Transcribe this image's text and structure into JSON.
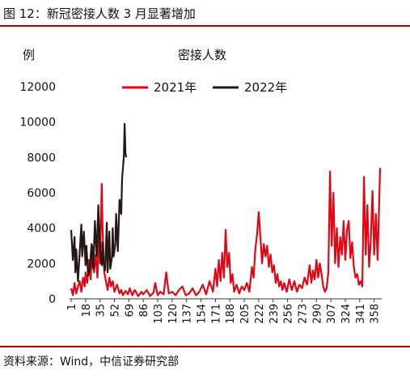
{
  "figure": {
    "title": "图 12：新冠密接人数 3 月显著增加",
    "source": "资料来源：Wind，中信证券研究部"
  },
  "colors": {
    "accent": "#c00000",
    "series_2021": "#e30613",
    "series_2022": "#231815"
  },
  "chart_data": {
    "type": "line",
    "title": "密接人数",
    "ylabel": "例",
    "xlabel": "",
    "ylim": [
      0,
      12000
    ],
    "yticks": [
      "0",
      "2000",
      "4000",
      "6000",
      "8000",
      "10000",
      "12000"
    ],
    "yticks_values": [
      0,
      2000,
      4000,
      6000,
      8000,
      10000,
      12000
    ],
    "xlim": [
      1,
      365
    ],
    "xticks": [
      "1",
      "18",
      "35",
      "52",
      "69",
      "86",
      "103",
      "120",
      "137",
      "154",
      "171",
      "188",
      "205",
      "222",
      "239",
      "256",
      "273",
      "290",
      "307",
      "324",
      "341",
      "358"
    ],
    "xticks_values": [
      1,
      18,
      35,
      52,
      69,
      86,
      103,
      120,
      137,
      154,
      171,
      188,
      205,
      222,
      239,
      256,
      273,
      290,
      307,
      324,
      341,
      358
    ],
    "grid": false,
    "legend_position": "top-center",
    "series": [
      {
        "name": "2021年",
        "color": "#e30613",
        "points": [
          [
            1,
            600
          ],
          [
            3,
            200
          ],
          [
            5,
            900
          ],
          [
            7,
            300
          ],
          [
            9,
            700
          ],
          [
            11,
            1000
          ],
          [
            13,
            400
          ],
          [
            15,
            1200
          ],
          [
            17,
            700
          ],
          [
            18,
            1500
          ],
          [
            20,
            900
          ],
          [
            22,
            2200
          ],
          [
            24,
            1100
          ],
          [
            26,
            3000
          ],
          [
            28,
            1500
          ],
          [
            30,
            2500
          ],
          [
            32,
            1200
          ],
          [
            34,
            4000
          ],
          [
            35,
            2000
          ],
          [
            37,
            6500
          ],
          [
            38,
            4000
          ],
          [
            40,
            1500
          ],
          [
            42,
            1000
          ],
          [
            44,
            500
          ],
          [
            46,
            1200
          ],
          [
            48,
            700
          ],
          [
            50,
            1000
          ],
          [
            52,
            400
          ],
          [
            55,
            800
          ],
          [
            58,
            300
          ],
          [
            60,
            500
          ],
          [
            62,
            200
          ],
          [
            65,
            450
          ],
          [
            68,
            250
          ],
          [
            70,
            600
          ],
          [
            73,
            200
          ],
          [
            76,
            500
          ],
          [
            80,
            150
          ],
          [
            84,
            400
          ],
          [
            86,
            250
          ],
          [
            90,
            500
          ],
          [
            94,
            150
          ],
          [
            98,
            350
          ],
          [
            100,
            900
          ],
          [
            103,
            200
          ],
          [
            106,
            400
          ],
          [
            110,
            250
          ],
          [
            113,
            1500
          ],
          [
            116,
            300
          ],
          [
            120,
            400
          ],
          [
            124,
            200
          ],
          [
            128,
            500
          ],
          [
            132,
            700
          ],
          [
            136,
            200
          ],
          [
            140,
            300
          ],
          [
            144,
            600
          ],
          [
            148,
            200
          ],
          [
            152,
            400
          ],
          [
            156,
            800
          ],
          [
            160,
            250
          ],
          [
            164,
            1000
          ],
          [
            168,
            400
          ],
          [
            171,
            1700
          ],
          [
            173,
            700
          ],
          [
            175,
            2200
          ],
          [
            177,
            1000
          ],
          [
            179,
            2600
          ],
          [
            181,
            1200
          ],
          [
            183,
            3900
          ],
          [
            185,
            1800
          ],
          [
            187,
            2600
          ],
          [
            189,
            900
          ],
          [
            191,
            1400
          ],
          [
            193,
            400
          ],
          [
            196,
            800
          ],
          [
            199,
            300
          ],
          [
            202,
            700
          ],
          [
            205,
            500
          ],
          [
            208,
            900
          ],
          [
            211,
            400
          ],
          [
            214,
            1800
          ],
          [
            216,
            1200
          ],
          [
            218,
            2800
          ],
          [
            220,
            3600
          ],
          [
            222,
            4900
          ],
          [
            224,
            3500
          ],
          [
            226,
            2000
          ],
          [
            228,
            3100
          ],
          [
            230,
            2400
          ],
          [
            232,
            3000
          ],
          [
            234,
            1800
          ],
          [
            236,
            2500
          ],
          [
            238,
            1500
          ],
          [
            240,
            1900
          ],
          [
            242,
            900
          ],
          [
            244,
            1400
          ],
          [
            246,
            700
          ],
          [
            248,
            1000
          ],
          [
            250,
            500
          ],
          [
            252,
            900
          ],
          [
            255,
            400
          ],
          [
            258,
            1100
          ],
          [
            261,
            500
          ],
          [
            264,
            1000
          ],
          [
            267,
            400
          ],
          [
            270,
            800
          ],
          [
            273,
            600
          ],
          [
            276,
            1200
          ],
          [
            279,
            800
          ],
          [
            282,
            1900
          ],
          [
            284,
            900
          ],
          [
            286,
            1600
          ],
          [
            288,
            1100
          ],
          [
            290,
            2200
          ],
          [
            292,
            1200
          ],
          [
            294,
            2000
          ],
          [
            296,
            1400
          ],
          [
            298,
            700
          ],
          [
            300,
            400
          ],
          [
            302,
            600
          ],
          [
            304,
            1500
          ],
          [
            306,
            7200
          ],
          [
            308,
            3000
          ],
          [
            310,
            6000
          ],
          [
            312,
            2000
          ],
          [
            314,
            4000
          ],
          [
            316,
            1800
          ],
          [
            318,
            3500
          ],
          [
            320,
            2500
          ],
          [
            322,
            4400
          ],
          [
            324,
            2200
          ],
          [
            326,
            3900
          ],
          [
            328,
            4400
          ],
          [
            330,
            2300
          ],
          [
            332,
            3200
          ],
          [
            334,
            1800
          ],
          [
            336,
            1200
          ],
          [
            338,
            1400
          ],
          [
            340,
            800
          ],
          [
            342,
            1000
          ],
          [
            344,
            700
          ],
          [
            346,
            6900
          ],
          [
            348,
            2500
          ],
          [
            350,
            5300
          ],
          [
            352,
            1800
          ],
          [
            354,
            3300
          ],
          [
            356,
            6100
          ],
          [
            358,
            2500
          ],
          [
            360,
            4800
          ],
          [
            362,
            2200
          ],
          [
            363,
            3700
          ],
          [
            365,
            7400
          ]
        ]
      },
      {
        "name": "2022年",
        "color": "#231815",
        "points": [
          [
            1,
            3900
          ],
          [
            3,
            2200
          ],
          [
            5,
            3500
          ],
          [
            6,
            1500
          ],
          [
            7,
            2800
          ],
          [
            9,
            1000
          ],
          [
            11,
            2600
          ],
          [
            13,
            4200
          ],
          [
            14,
            2400
          ],
          [
            16,
            3800
          ],
          [
            18,
            1900
          ],
          [
            19,
            3000
          ],
          [
            21,
            1300
          ],
          [
            23,
            1700
          ],
          [
            25,
            3100
          ],
          [
            27,
            1700
          ],
          [
            29,
            4400
          ],
          [
            31,
            2400
          ],
          [
            33,
            5300
          ],
          [
            35,
            2800
          ],
          [
            37,
            1900
          ],
          [
            38,
            3200
          ],
          [
            39,
            2000
          ],
          [
            41,
            1600
          ],
          [
            43,
            4300
          ],
          [
            44,
            1500
          ],
          [
            46,
            3800
          ],
          [
            47,
            1700
          ],
          [
            49,
            2300
          ],
          [
            50,
            4000
          ],
          [
            51,
            2400
          ],
          [
            53,
            3100
          ],
          [
            54,
            4800
          ],
          [
            56,
            2700
          ],
          [
            58,
            5600
          ],
          [
            60,
            4800
          ],
          [
            61,
            6800
          ],
          [
            63,
            8000
          ],
          [
            64,
            9900
          ],
          [
            65,
            8200
          ],
          [
            66,
            8000
          ]
        ]
      }
    ]
  }
}
